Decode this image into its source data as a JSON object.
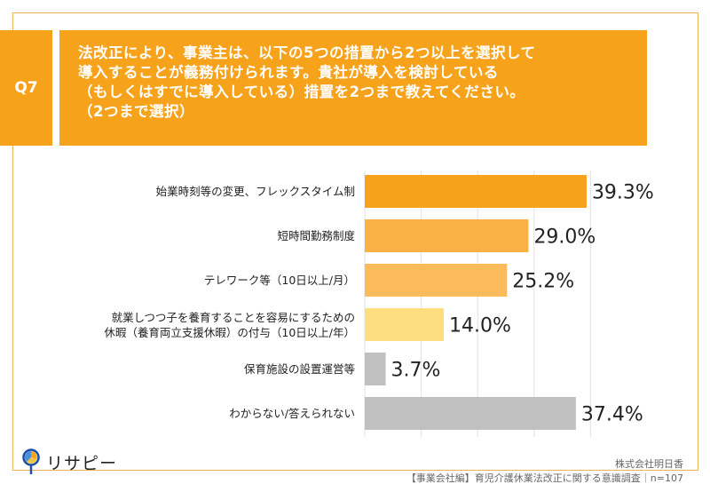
{
  "question": {
    "number": "Q7",
    "text": "法改正により、事業主は、以下の5つの措置から2つ以上を選択して\n導入することが義務付けられます。貴社が導入を検討している\n（もしくはすでに導入している）措置を2つまで教えてください。\n（2つまで選択）"
  },
  "chart_data": {
    "type": "bar",
    "orientation": "horizontal",
    "title": "",
    "xlabel": "",
    "ylabel": "",
    "xlim": [
      0,
      40
    ],
    "grid": true,
    "grid_step": 10,
    "categories": [
      "始業時刻等の変更、フレックスタイム制",
      "短時間勤務制度",
      "テレワーク等（10日以上/月）",
      "就業しつつ子を養育することを容易にするための\n休暇（養育両立支援休暇）の付与（10日以上/年）",
      "保育施設の設置運営等",
      "わからない/答えられない"
    ],
    "values": [
      39.3,
      29.0,
      25.2,
      14.0,
      3.7,
      37.4
    ],
    "value_labels": [
      "39.3%",
      "29.0%",
      "25.2%",
      "14.0%",
      "3.7%",
      "37.4%"
    ],
    "colors": [
      "#f7a21b",
      "#f9b044",
      "#fbbb5a",
      "#fddf80",
      "#c0c0c0",
      "#c0c0c0"
    ]
  },
  "footer": {
    "company": "株式会社明日香",
    "survey": "【事業会社編】育児介護休業法改正に関する意識調査｜n=107",
    "logo_text": "リサピー",
    "logo_icon": "magnifier-pie-icon"
  },
  "colors": {
    "accent": "#f7a21b",
    "frame": "#e8b45a"
  }
}
